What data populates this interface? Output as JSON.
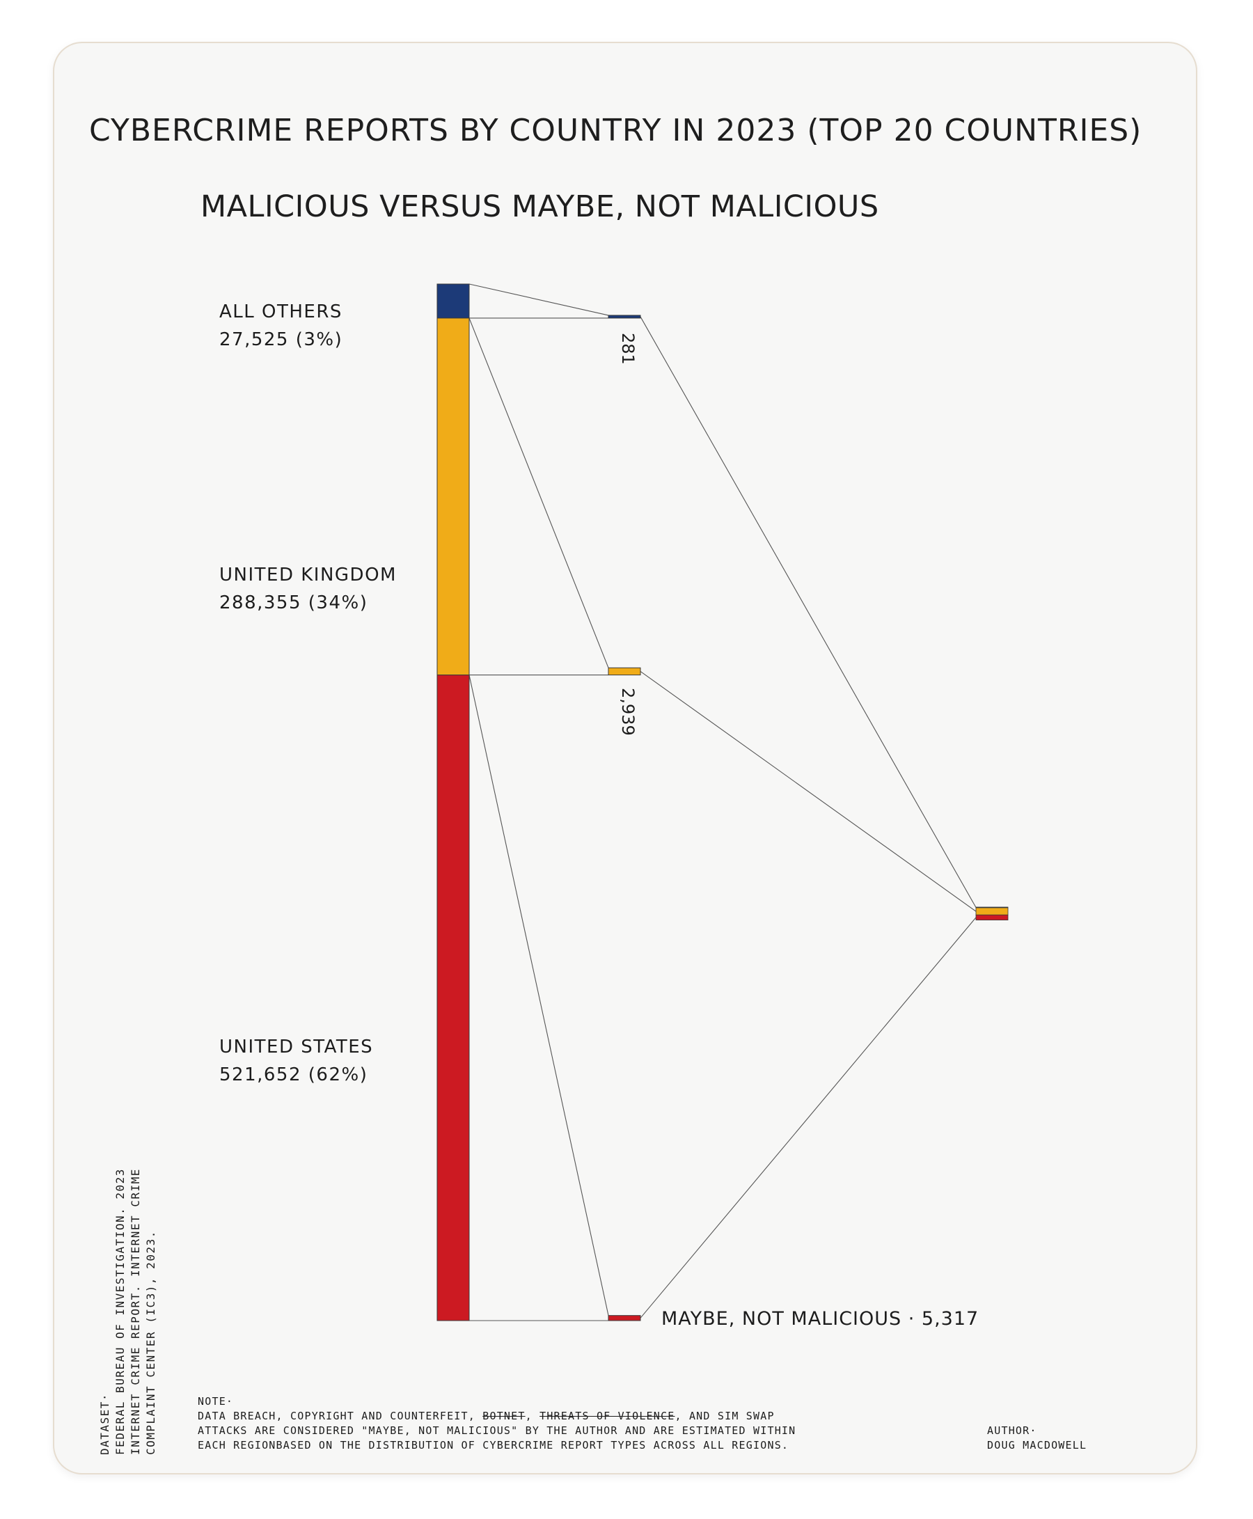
{
  "title": "CYBERCRIME REPORTS BY COUNTRY IN 2023 (TOP 20 COUNTRIES)",
  "subtitle": "MALICIOUS VERSUS MAYBE, NOT MALICIOUS",
  "countries": [
    {
      "name": "ALL OTHERS",
      "stat": "27,525 (3%)"
    },
    {
      "name": "UNITED KINGDOM",
      "stat": "288,355 (34%)"
    },
    {
      "name": "UNITED STATES",
      "stat": "521,652 (62%)"
    }
  ],
  "chart_data": {
    "type": "bar",
    "categories": [
      "ALL OTHERS",
      "UNITED KINGDOM",
      "UNITED STATES"
    ],
    "series": [
      {
        "name": "",
        "values": [
          27525,
          288355,
          521652
        ]
      },
      {
        "name": "MAYBE, NOT MALICIOUS",
        "values": [
          281,
          2939,
          2097
        ]
      }
    ],
    "labels": [
      "281",
      "2,939",
      ""
    ],
    "total_label": "MAYBE, NOT MALICIOUS · 5,317",
    "colors": [
      "#1c3a78",
      "#f0ac18",
      "#cc1a22"
    ]
  },
  "dataset": {
    "heading": "DATASET·",
    "lines": [
      "FEDERAL BUREAU OF INVESTIGATION. 2023",
      "INTERNET CRIME REPORT. INTERNET CRIME",
      "COMPLAINT CENTER (IC3), 2023."
    ]
  },
  "note": {
    "heading": "NOTE·",
    "line1_a": "DATA BREACH, COPYRIGHT AND COUNTERFEIT, ",
    "line1_strike1": "BOTNET",
    "line1_sep": ", ",
    "line1_strike2": "THREATS OF VIOLENCE",
    "line1_b": ", AND SIM SWAP",
    "line2": "ATTACKS ARE CONSIDERED \"MAYBE, NOT MALICIOUS\" BY THE AUTHOR AND ARE ESTIMATED WITHIN",
    "line3": "EACH REGIONBASED ON THE DISTRIBUTION OF CYBERCRIME REPORT TYPES ACROSS ALL REGIONS."
  },
  "author": {
    "heading": "AUTHOR·",
    "name": "DOUG MACDOWELL"
  }
}
